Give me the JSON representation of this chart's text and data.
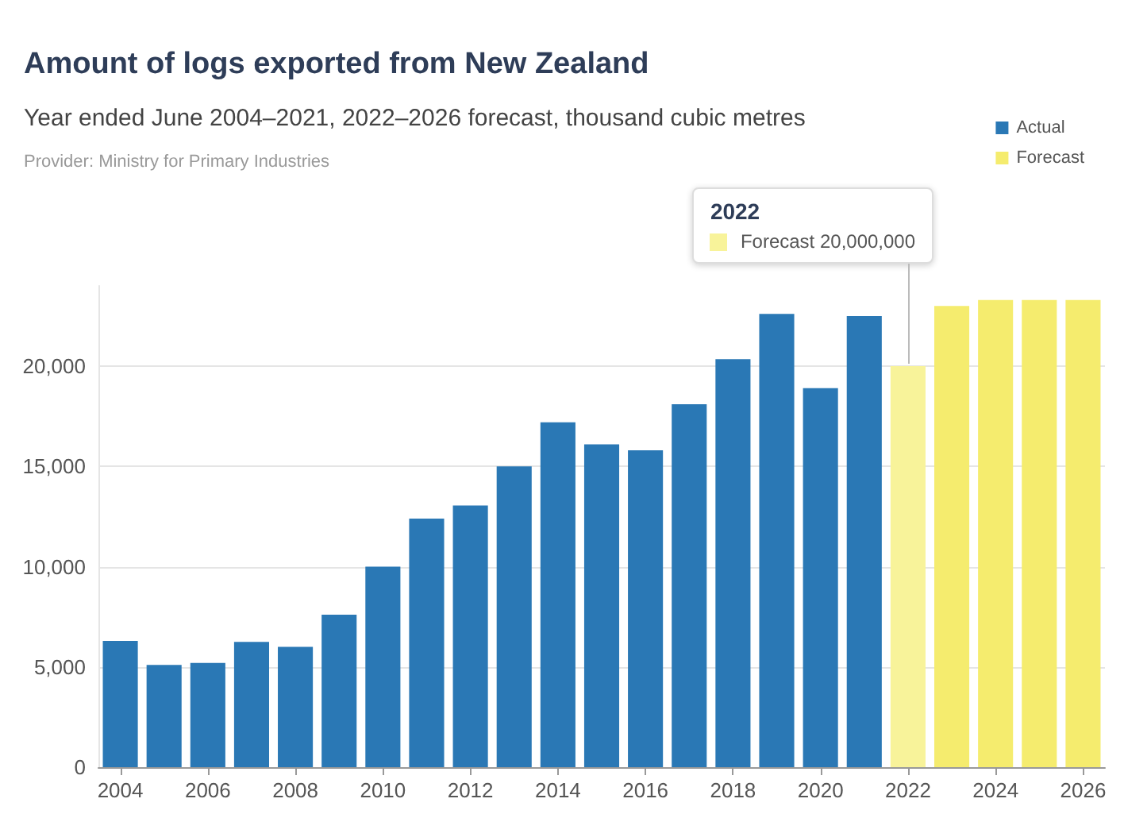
{
  "chart_data": {
    "type": "bar",
    "title": "Amount of logs exported from New Zealand",
    "subtitle": "Year ended June 2004–2021, 2022–2026 forecast, thousand cubic metres",
    "annotations": [
      "Provider: Ministry for Primary Industries",
      {
        "text": "2022\nForecast 20,000,000",
        "x": "2022",
        "y": 20000
      }
    ],
    "categories": [
      "2004",
      null,
      "2006",
      null,
      "2008",
      null,
      "2010",
      null,
      "2012",
      null,
      "2014",
      null,
      "2016",
      null,
      "2018",
      null,
      "2020",
      null,
      "2022",
      null,
      "2024",
      null,
      "2026"
    ],
    "series": [
      {
        "name": "Actual",
        "color": "#2a78b5",
        "values": [
          6300,
          5100,
          5200,
          6250,
          6000,
          7600,
          10000,
          12400,
          13050,
          15000,
          17200,
          16100,
          15800,
          18100,
          20350,
          22600,
          18900,
          22500,
          null,
          null,
          null,
          null,
          null
        ]
      },
      {
        "name": "Forecast",
        "color": "#f5ec6e",
        "colors": [
          "#f5ec6e",
          "#f5ec6e",
          "#f5ec6e",
          "#f5ec6e",
          "#f5ec6e",
          "#f5ec6e",
          "#f5ec6e",
          "#f5ec6e",
          "#f5ec6e",
          "#f5ec6e",
          "#f5ec6e",
          "#f5ec6e",
          "#f5ec6e",
          "#f5ec6e",
          "#f5ec6e",
          "#f5ec6e",
          "#f5ec6e",
          "#f5ec6e",
          "#f8f39a",
          "#f5ec6e",
          "#f5ec6e",
          "#f5ec6e",
          "#f5ec6e"
        ],
        "values": [
          null,
          null,
          null,
          null,
          null,
          null,
          null,
          null,
          null,
          null,
          null,
          null,
          null,
          null,
          null,
          null,
          null,
          null,
          20000,
          23000,
          23300,
          23300,
          23300
        ]
      }
    ],
    "stacked": true,
    "ylim": [
      0,
      24000
    ],
    "yticks": [
      0,
      {
        "value": 5000,
        "label": "5,000"
      },
      {
        "value": 10000,
        "label": "10,000"
      },
      {
        "value": 15000,
        "label": "15,000"
      },
      {
        "value": 20000,
        "label": "20,000"
      }
    ],
    "grid": "y",
    "legend": "top right"
  }
}
